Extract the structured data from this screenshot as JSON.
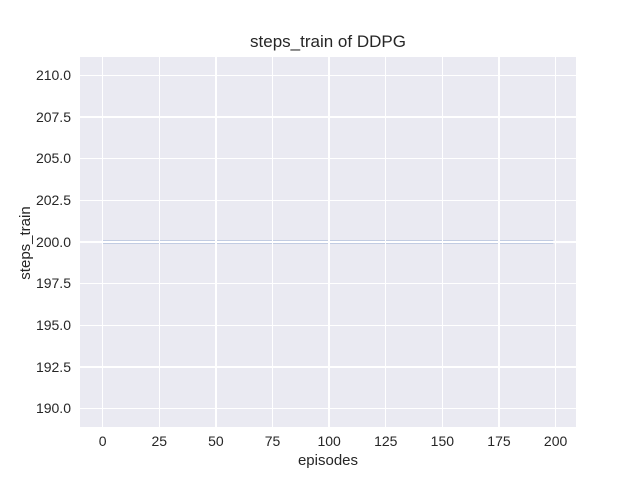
{
  "figure": {
    "background": "#FFFFFF"
  },
  "chart_data": {
    "type": "line",
    "title": "steps_train of DDPG",
    "xlabel": "episodes",
    "ylabel": "steps_train",
    "series": [
      {
        "name": "steps_train",
        "color": "#4C72B0",
        "line_width": 2.4,
        "x": [
          0,
          199
        ],
        "y": [
          200,
          200
        ],
        "note": "constant value 200 for all episodes 0-199"
      }
    ],
    "xlim": [
      -10,
      209
    ],
    "ylim": [
      188.9,
      211.1
    ],
    "xticks": [
      0,
      25,
      50,
      75,
      100,
      125,
      150,
      175,
      200
    ],
    "xtick_labels": [
      "0",
      "25",
      "50",
      "75",
      "100",
      "125",
      "150",
      "175",
      "200"
    ],
    "yticks": [
      190,
      192.5,
      195,
      197.5,
      200,
      202.5,
      205,
      207.5,
      210
    ],
    "ytick_labels": [
      "190.0",
      "192.5",
      "195.0",
      "197.5",
      "200.0",
      "202.5",
      "205.0",
      "207.5",
      "210.0"
    ],
    "grid": true,
    "legend": "none",
    "plot_background": "#EAEAF2",
    "grid_color": "#FFFFFF",
    "text_color": "#262626"
  }
}
